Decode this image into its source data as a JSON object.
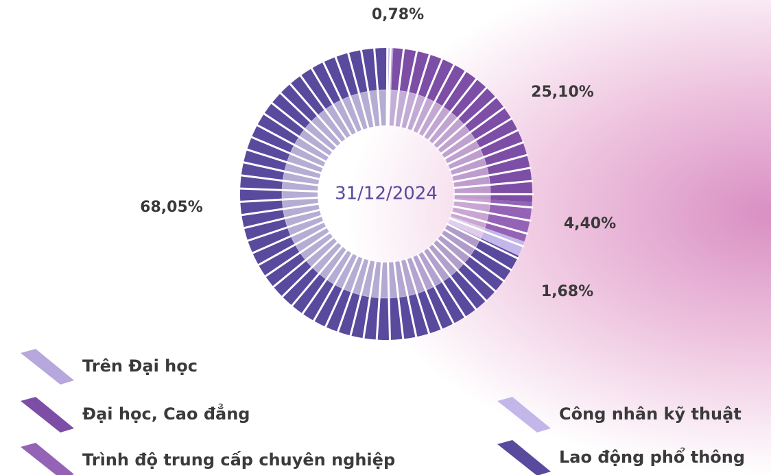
{
  "chart_data": {
    "type": "donut",
    "center_label": "31/12/2024",
    "categories": [
      "Trên Đại học",
      "Đại học, Cao đẳng",
      "Trình độ trung cấp chuyên nghiệp",
      "Công nhân kỹ thuật",
      "Lao động phổ thông"
    ],
    "values": [
      0.78,
      25.1,
      4.4,
      1.68,
      68.05
    ],
    "value_labels": [
      "0,78%",
      "25,10%",
      "4,40%",
      "1,68%",
      "68,05%"
    ],
    "colors": [
      "#b6a7dd",
      "#7d4ea6",
      "#9563b6",
      "#c3b7ea",
      "#5a4a9d"
    ]
  }
}
